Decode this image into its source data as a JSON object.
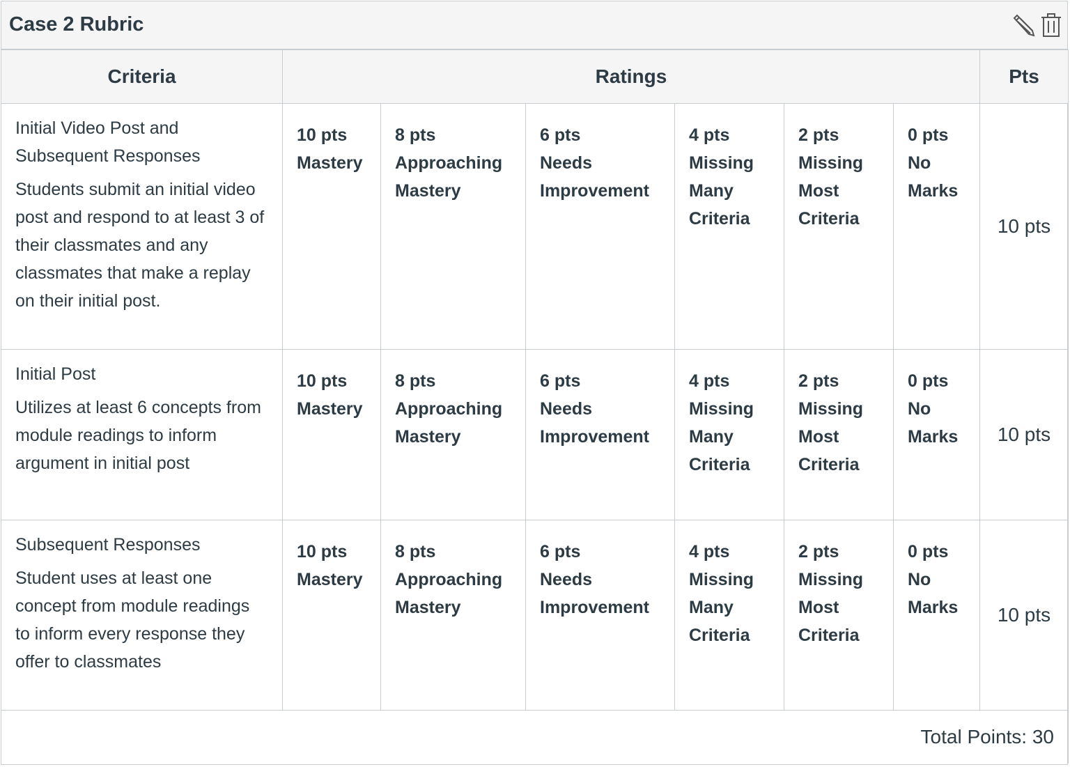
{
  "title": "Case 2 Rubric",
  "icons": {
    "edit": "pencil-icon",
    "delete": "trash-icon"
  },
  "headers": {
    "criteria": "Criteria",
    "ratings": "Ratings",
    "pts": "Pts"
  },
  "rows": [
    {
      "title": "Initial Video Post and Subsequent Responses",
      "description": "Students submit an initial video post and respond to at least 3 of their classmates and any classmates that make a replay on their initial post.",
      "ratings": [
        {
          "points": "10 pts",
          "label": "Mastery"
        },
        {
          "points": "8 pts",
          "label": "Approaching Mastery"
        },
        {
          "points": "6 pts",
          "label": "Needs Improvement"
        },
        {
          "points": "4 pts",
          "label": "Missing Many Criteria"
        },
        {
          "points": "2 pts",
          "label": "Missing Most Criteria"
        },
        {
          "points": "0 pts",
          "label": "No Marks"
        }
      ],
      "pts": "10 pts"
    },
    {
      "title": "Initial Post",
      "description": "Utilizes at least 6 concepts from module readings to inform argument in initial post",
      "ratings": [
        {
          "points": "10 pts",
          "label": "Mastery"
        },
        {
          "points": "8 pts",
          "label": "Approaching Mastery"
        },
        {
          "points": "6 pts",
          "label": "Needs Improvement"
        },
        {
          "points": "4 pts",
          "label": "Missing Many Criteria"
        },
        {
          "points": "2 pts",
          "label": "Missing Most Criteria"
        },
        {
          "points": "0 pts",
          "label": "No Marks"
        }
      ],
      "pts": "10 pts"
    },
    {
      "title": "Subsequent Responses",
      "description": "Student uses at least one concept from module readings to inform every response they offer to classmates",
      "ratings": [
        {
          "points": "10 pts",
          "label": "Mastery"
        },
        {
          "points": "8 pts",
          "label": "Approaching Mastery"
        },
        {
          "points": "6 pts",
          "label": "Needs Improvement"
        },
        {
          "points": "4 pts",
          "label": "Missing Many Criteria"
        },
        {
          "points": "2 pts",
          "label": "Missing Most Criteria"
        },
        {
          "points": "0 pts",
          "label": "No Marks"
        }
      ],
      "pts": "10 pts"
    }
  ],
  "total": "Total Points: 30"
}
